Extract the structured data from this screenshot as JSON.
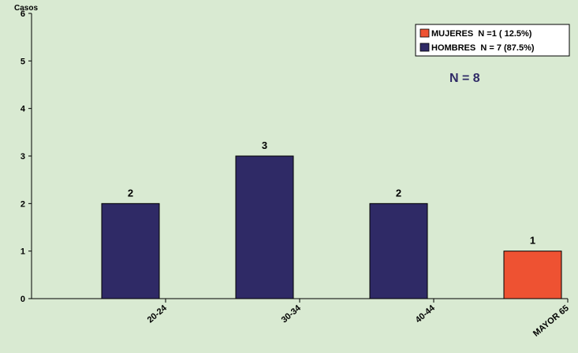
{
  "chart_data": {
    "type": "bar",
    "categories": [
      "20-24",
      "30-34",
      "40-44",
      "MAYOR 65"
    ],
    "series": [
      {
        "name": "MUJERES  N =1 ( 12.5%)",
        "values": [
          0,
          0,
          0,
          1
        ],
        "color": "#ee5232"
      },
      {
        "name": "HOMBRES  N = 7 (87.5%)",
        "values": [
          2,
          3,
          2,
          0
        ],
        "color": "#2f2a66"
      }
    ],
    "data_labels": [
      "2",
      "3",
      "2",
      "1"
    ],
    "ylabel": "Casos",
    "xlabel": "",
    "ylim": [
      0,
      6
    ],
    "yticks": [
      0,
      1,
      2,
      3,
      4,
      5,
      6
    ],
    "grid": false,
    "legend_position": "top-right",
    "annotation": "N = 8",
    "annotation_color": "#2f2a66",
    "background_color": "#d9ead2"
  }
}
